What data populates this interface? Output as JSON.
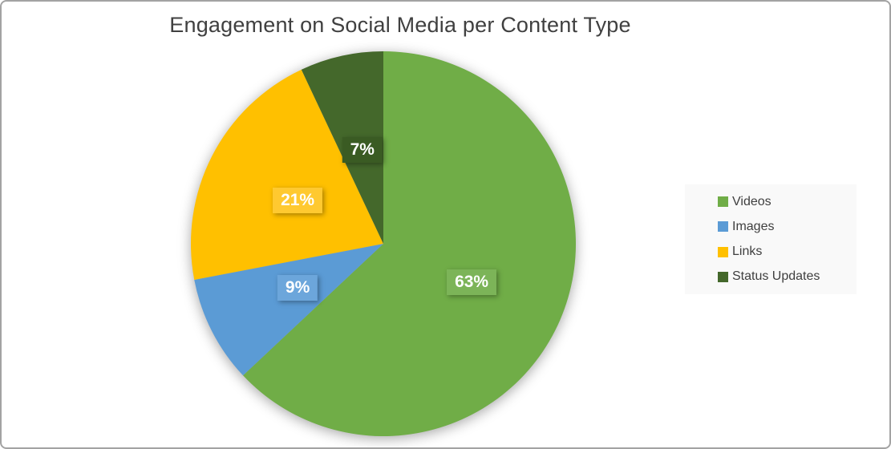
{
  "chart": {
    "title_color": "#404040",
    "legend_background": "#f9f9f9",
    "legend_text_color": "#3f3f3f",
    "data_label_text_color": "#ffffff",
    "frame_border_color": "#a3a3a3"
  },
  "chart_data": {
    "type": "pie",
    "title": "Engagement on Social Media per Content Type",
    "categories": [
      "Videos",
      "Images",
      "Links",
      "Status Updates"
    ],
    "values": [
      63,
      9,
      21,
      7
    ],
    "data_labels": [
      "63%",
      "9%",
      "21%",
      "7%"
    ],
    "unit": "%",
    "colors": [
      "#70AD47",
      "#5B9BD5",
      "#FFC000",
      "#44682B"
    ],
    "data_label_bg_colors": [
      "#7CB458",
      "#6CA6DB",
      "#FFC930",
      "#3A5B23"
    ],
    "legend_position": "right",
    "legend_entries": [
      "Videos",
      "Images",
      "Links",
      "Status Updates"
    ],
    "start_angle_deg": 0,
    "direction": "clockwise",
    "total": 100
  }
}
